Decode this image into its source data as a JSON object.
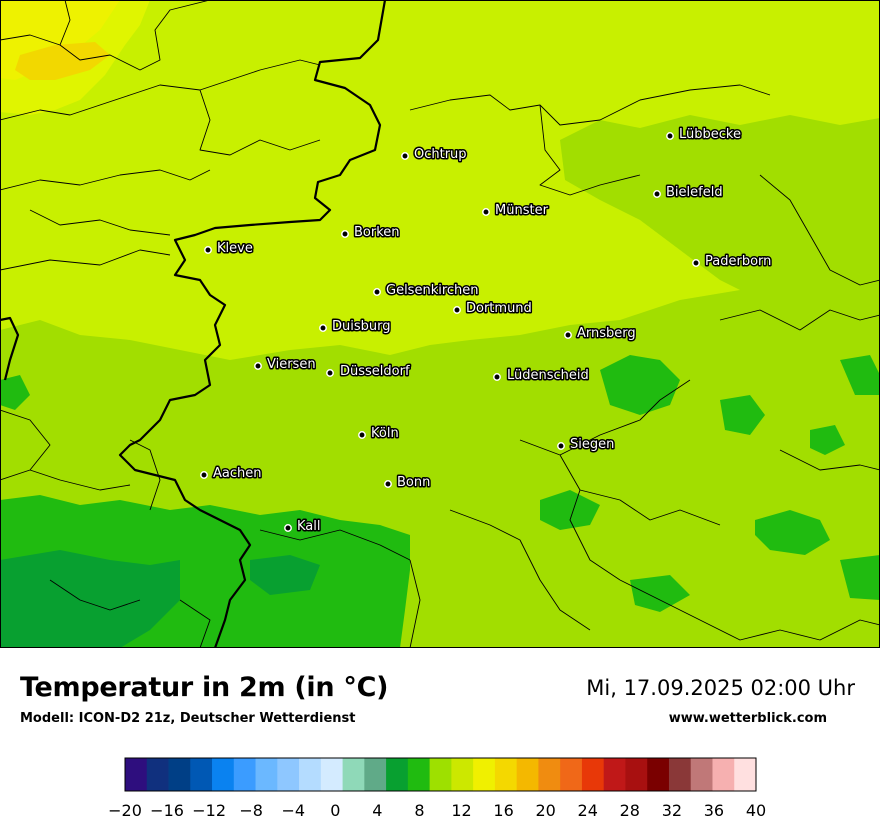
{
  "map": {
    "cities": [
      {
        "name": "Lübbecke"
      },
      {
        "name": "Ochtrup"
      },
      {
        "name": "Bielefeld"
      },
      {
        "name": "Münster"
      },
      {
        "name": "Borken"
      },
      {
        "name": "Kleve"
      },
      {
        "name": "Paderborn"
      },
      {
        "name": "Gelsenkirchen"
      },
      {
        "name": "Dortmund"
      },
      {
        "name": "Duisburg"
      },
      {
        "name": "Arnsberg"
      },
      {
        "name": "Viersen"
      },
      {
        "name": "Düsseldorf"
      },
      {
        "name": "Lüdenscheid"
      },
      {
        "name": "Köln"
      },
      {
        "name": "Siegen"
      },
      {
        "name": "Aachen"
      },
      {
        "name": "Bonn"
      },
      {
        "name": "Kall"
      }
    ]
  },
  "footer": {
    "title": "Temperatur in 2m (in °C)",
    "subtitle": "Modell: ICON-D2 21z, Deutscher Wetterdienst",
    "datetime": "Mi, 17.09.2025 02:00 Uhr",
    "website": "www.wetterblick.com"
  },
  "legend": {
    "tick_labels": [
      "−20",
      "−16",
      "−12",
      "−8",
      "−4",
      "0",
      "4",
      "8",
      "12",
      "16",
      "20",
      "24",
      "28",
      "32",
      "36",
      "40"
    ],
    "colors": [
      "#2e0e7e",
      "#10307e",
      "#003f86",
      "#0058b4",
      "#0a82f0",
      "#3b9cff",
      "#6bb8ff",
      "#8ec7ff",
      "#b4dcff",
      "#d4ebff",
      "#8fd9b8",
      "#60aa88",
      "#08a030",
      "#20bb10",
      "#9ee000",
      "#cce800",
      "#f0f000",
      "#f4d800",
      "#f4b800",
      "#f08c10",
      "#f06818",
      "#e83808",
      "#c01818",
      "#a81010",
      "#7a0000",
      "#8a3838",
      "#c07878",
      "#f6b0b0",
      "#ffe0e0"
    ]
  }
}
